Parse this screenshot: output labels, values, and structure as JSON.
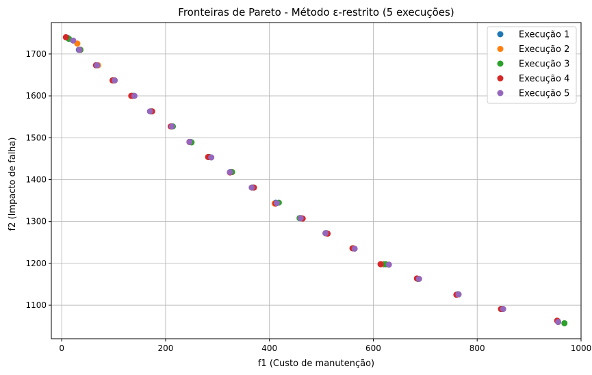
{
  "chart_data": {
    "type": "scatter",
    "title": "Fronteiras de Pareto - Método ε-restrito (5 execuções)",
    "xlabel": "f1 (Custo de manutenção)",
    "ylabel": "f2 (Impacto de falha)",
    "xlim": [
      -20,
      1000
    ],
    "ylim": [
      1020,
      1775
    ],
    "xticks": [
      0,
      200,
      400,
      600,
      800,
      1000
    ],
    "yticks": [
      1100,
      1200,
      1300,
      1400,
      1500,
      1600,
      1700
    ],
    "grid": true,
    "legend_position": "top-right",
    "series": [
      {
        "name": "Execução 1",
        "color": "#1f77b4",
        "x": [
          12,
          33,
          68,
          100,
          136,
          172,
          212,
          248,
          284,
          326,
          368,
          412,
          460,
          510,
          562,
          620,
          686,
          762,
          848,
          955
        ],
        "y": [
          1738,
          1710,
          1673,
          1637,
          1600,
          1563,
          1527,
          1490,
          1454,
          1418,
          1381,
          1345,
          1308,
          1272,
          1236,
          1198,
          1163,
          1126,
          1091,
          1062
        ]
      },
      {
        "name": "Execução 2",
        "color": "#ff7f0e",
        "x": [
          30,
          36,
          70,
          102,
          134,
          174,
          210,
          246,
          282,
          328,
          366,
          410,
          462,
          508,
          562,
          616,
          688,
          764,
          846,
          956
        ],
        "y": [
          1725,
          1710,
          1673,
          1637,
          1600,
          1563,
          1527,
          1490,
          1454,
          1418,
          1381,
          1343,
          1308,
          1272,
          1236,
          1198,
          1163,
          1126,
          1091,
          1060
        ]
      },
      {
        "name": "Execução 3",
        "color": "#2ca02c",
        "x": [
          14,
          36,
          66,
          98,
          138,
          172,
          214,
          250,
          284,
          328,
          370,
          418,
          458,
          508,
          560,
          624,
          686,
          764,
          846,
          968
        ],
        "y": [
          1736,
          1710,
          1673,
          1637,
          1600,
          1563,
          1527,
          1489,
          1454,
          1418,
          1381,
          1345,
          1308,
          1272,
          1236,
          1198,
          1163,
          1126,
          1091,
          1057
        ]
      },
      {
        "name": "Execução 4",
        "color": "#d62728",
        "x": [
          8,
          34,
          66,
          98,
          134,
          174,
          210,
          246,
          282,
          324,
          370,
          412,
          464,
          512,
          560,
          614,
          684,
          760,
          846,
          954
        ],
        "y": [
          1740,
          1710,
          1673,
          1637,
          1600,
          1563,
          1527,
          1490,
          1454,
          1417,
          1381,
          1343,
          1307,
          1271,
          1236,
          1198,
          1164,
          1125,
          1091,
          1063
        ]
      },
      {
        "name": "Execução 5",
        "color": "#9467bd",
        "x": [
          22,
          34,
          68,
          102,
          140,
          170,
          212,
          246,
          288,
          324,
          366,
          414,
          460,
          508,
          564,
          630,
          688,
          764,
          850,
          956
        ],
        "y": [
          1732,
          1710,
          1673,
          1637,
          1600,
          1563,
          1527,
          1490,
          1453,
          1418,
          1381,
          1344,
          1308,
          1272,
          1235,
          1197,
          1163,
          1126,
          1091,
          1060
        ]
      }
    ]
  }
}
